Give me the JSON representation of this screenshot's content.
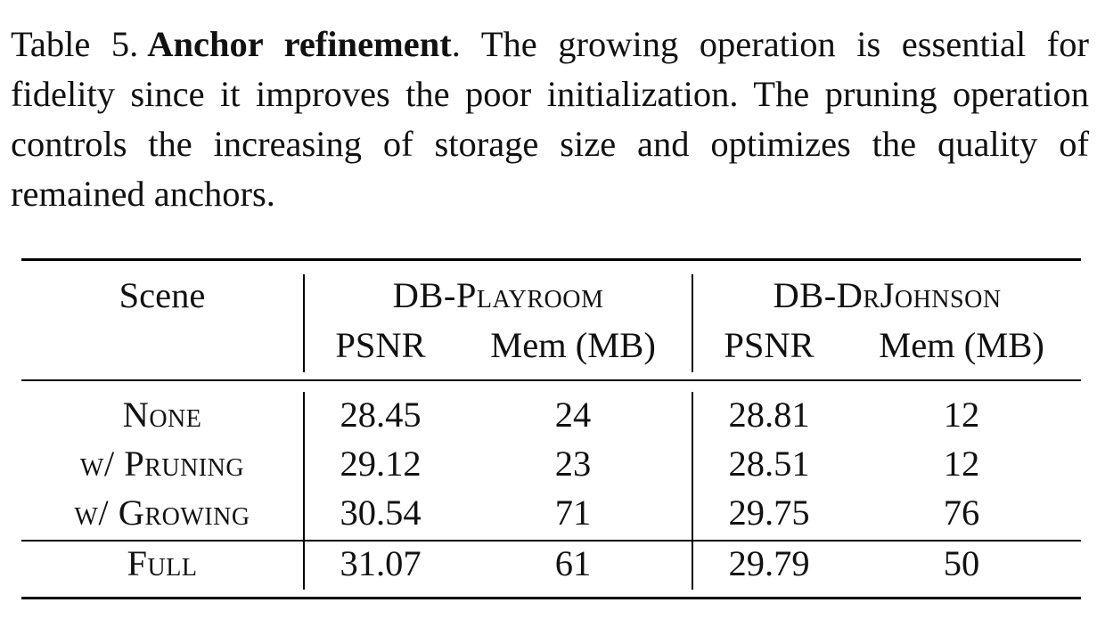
{
  "caption": {
    "label": "Table 5.",
    "title": "Anchor refinement",
    "title_suffix": ".",
    "text": "The growing operation is essential for fidelity since it improves the poor initialization. The pruning operation controls the increasing of storage size and optimizes the quality of remained anchors."
  },
  "table": {
    "scene_header": "Scene",
    "groups": [
      {
        "name": "DB-Playroom",
        "columns": [
          "PSNR",
          "Mem (MB)"
        ]
      },
      {
        "name": "DB-DrJohnson",
        "columns": [
          "PSNR",
          "Mem (MB)"
        ]
      }
    ],
    "rows": [
      {
        "label": "None",
        "values": [
          "28.45",
          "24",
          "28.81",
          "12"
        ]
      },
      {
        "label": "w/ Pruning",
        "values": [
          "29.12",
          "23",
          "28.51",
          "12"
        ]
      },
      {
        "label": "w/ Growing",
        "values": [
          "30.54",
          "71",
          "29.75",
          "76"
        ]
      },
      {
        "label": "Full",
        "values": [
          "31.07",
          "61",
          "29.79",
          "50"
        ]
      }
    ]
  }
}
